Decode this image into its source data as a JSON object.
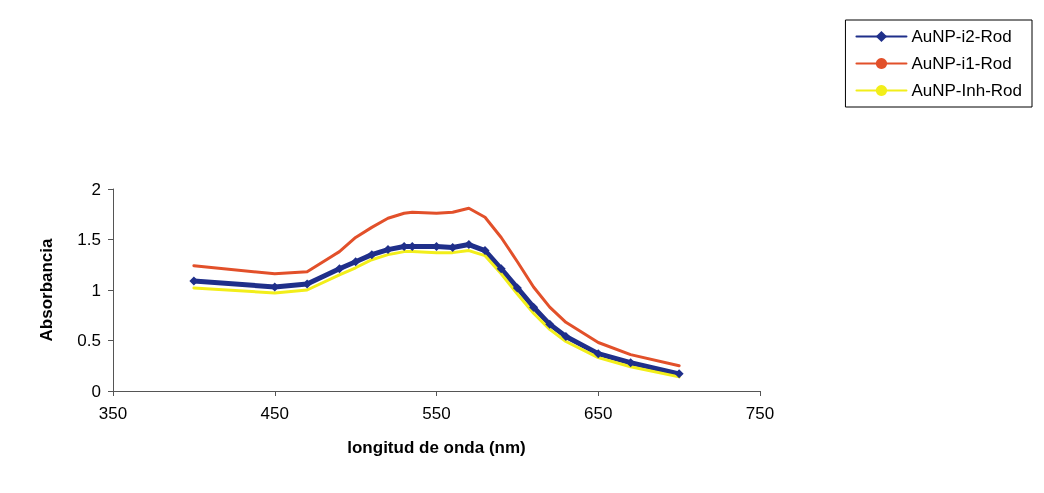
{
  "chart_data": {
    "type": "line",
    "xlabel": "longitud de onda (nm)",
    "ylabel": "Absorbancia",
    "x": [
      400,
      450,
      470,
      490,
      500,
      510,
      520,
      530,
      535,
      550,
      560,
      570,
      580,
      590,
      600,
      610,
      620,
      630,
      650,
      670,
      700
    ],
    "series": [
      {
        "name": "AuNP-i2-Rod",
        "color": "#1f2f8a",
        "marker": "diamond",
        "values": [
          1.09,
          1.03,
          1.06,
          1.21,
          1.28,
          1.35,
          1.4,
          1.43,
          1.43,
          1.43,
          1.42,
          1.45,
          1.39,
          1.21,
          1.02,
          0.83,
          0.66,
          0.54,
          0.37,
          0.28,
          0.17
        ]
      },
      {
        "name": "AuNP-i1-Rod",
        "color": "#e2502a",
        "marker": "none",
        "values": [
          1.24,
          1.16,
          1.18,
          1.38,
          1.52,
          1.62,
          1.71,
          1.76,
          1.77,
          1.76,
          1.77,
          1.81,
          1.72,
          1.52,
          1.28,
          1.03,
          0.83,
          0.68,
          0.48,
          0.36,
          0.25
        ]
      },
      {
        "name": "AuNP-Inh-Rod",
        "color": "#f2ee1a",
        "marker": "none",
        "values": [
          1.02,
          0.97,
          1.0,
          1.15,
          1.22,
          1.3,
          1.35,
          1.38,
          1.38,
          1.37,
          1.37,
          1.39,
          1.34,
          1.16,
          0.96,
          0.77,
          0.61,
          0.49,
          0.33,
          0.24,
          0.14
        ]
      }
    ],
    "xlim": [
      350,
      750
    ],
    "xticks": [
      350,
      450,
      550,
      650,
      750
    ],
    "ylim": [
      0,
      2
    ],
    "yticks": [
      0,
      0.5,
      1,
      1.5,
      2
    ],
    "grid": false,
    "legend": "top right",
    "line_style": "solid"
  }
}
